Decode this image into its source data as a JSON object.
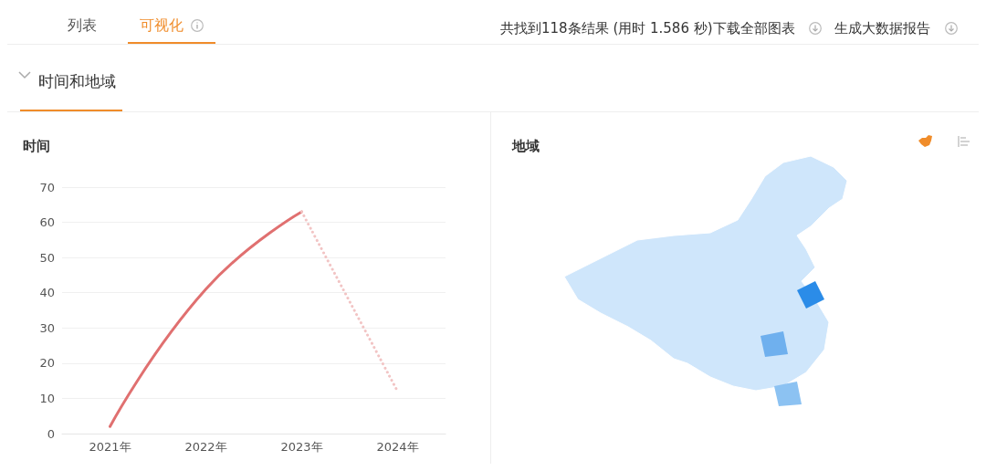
{
  "chart_data": [
    {
      "type": "line",
      "title": "时间",
      "annotations": [
        "列表",
        "可视化",
        "共找到118条结果 (用时 1.586 秒)下载全部图表",
        "生成大数据报告",
        "时间和地域"
      ],
      "categories": [
        "2021年",
        "2022年",
        "2023年",
        "2024年"
      ],
      "series": [
        {
          "color": "#e07070",
          "line_style": "solid",
          "values": [
            2,
            41,
            63,
            null
          ]
        },
        {
          "color": "#f2c4c4",
          "line_style": "dotted",
          "values": [
            null,
            null,
            63,
            12
          ]
        }
      ],
      "ylim": [
        0,
        70
      ],
      "yticks": [
        0,
        10,
        20,
        30,
        40,
        50,
        60,
        70
      ],
      "grid": "y",
      "marker": "none"
    },
    {
      "type": "other",
      "title": "地域"
    }
  ]
}
